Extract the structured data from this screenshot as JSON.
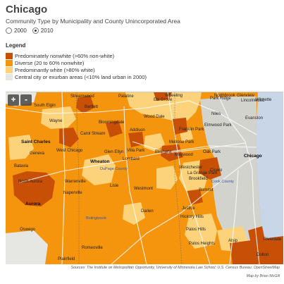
{
  "header": {
    "title": "Chicago",
    "subtitle": "Community Type by Municipality and County Unincorporated Area"
  },
  "years": {
    "options": [
      {
        "label": "2000",
        "selected": false
      },
      {
        "label": "2010",
        "selected": true
      }
    ]
  },
  "legend": {
    "title": "Legend",
    "items": [
      {
        "label": "Predominately nonwhite (>60% non-white)",
        "color": "#c85006"
      },
      {
        "label": "Diverse (20 to 60% nonwhite)",
        "color": "#f5940d"
      },
      {
        "label": "Predominantly white (>80% white)",
        "color": "#fcd37a"
      },
      {
        "label": "Central city or exurban areas (<10% land urban in 2000)",
        "color": "#e6e6e3"
      }
    ]
  },
  "colors": {
    "water": "#c8d6e8",
    "urban_gray": "#d3d3ce",
    "road": "#ffffff"
  },
  "map": {
    "zoom_in_label": "+",
    "zoom_out_label": "-",
    "places": [
      "Streamwood",
      "Palatine",
      "Wheeling",
      "Northbrook",
      "Glenview",
      "Wilmette",
      "South Elgin",
      "Bartlett",
      "Elk Grove",
      "Park Ridge",
      "Lincolnwood",
      "Wayne",
      "Bloomingdale",
      "Wood Dale",
      "Niles",
      "Evanston",
      "Carol Stream",
      "Addison",
      "Franklin Park",
      "Elmwood Park",
      "Saint Charles",
      "West Chicago",
      "Glen Ellyn",
      "Villa Park",
      "Melrose Park",
      "Elmhurst",
      "Maywood",
      "Oak Park",
      "Chicago",
      "Geneva",
      "Wheaton",
      "Lombard",
      "Westchester",
      "Cicero",
      "Batavia",
      "DuPage County",
      "La Grange Park",
      "Brookfield",
      "Cook County",
      "North Aurora",
      "Warrenville",
      "Lisle",
      "Westmont",
      "Summit",
      "Aurora",
      "Naperville",
      "Darien",
      "Justice",
      "Hickory Hills",
      "Oswego",
      "Bolingbrook",
      "Palos Hills",
      "Riverdale",
      "Romeoville",
      "Palos Heights",
      "Alsip",
      "Plainfield",
      "Dolton"
    ]
  },
  "footer": {
    "sources": "Sources: The Institute on Metropolitan Opportunity, University of Minnesota Law School; U.S. Census Bureau; OpenStreetMap",
    "credit": "Map by Brian McGill"
  }
}
